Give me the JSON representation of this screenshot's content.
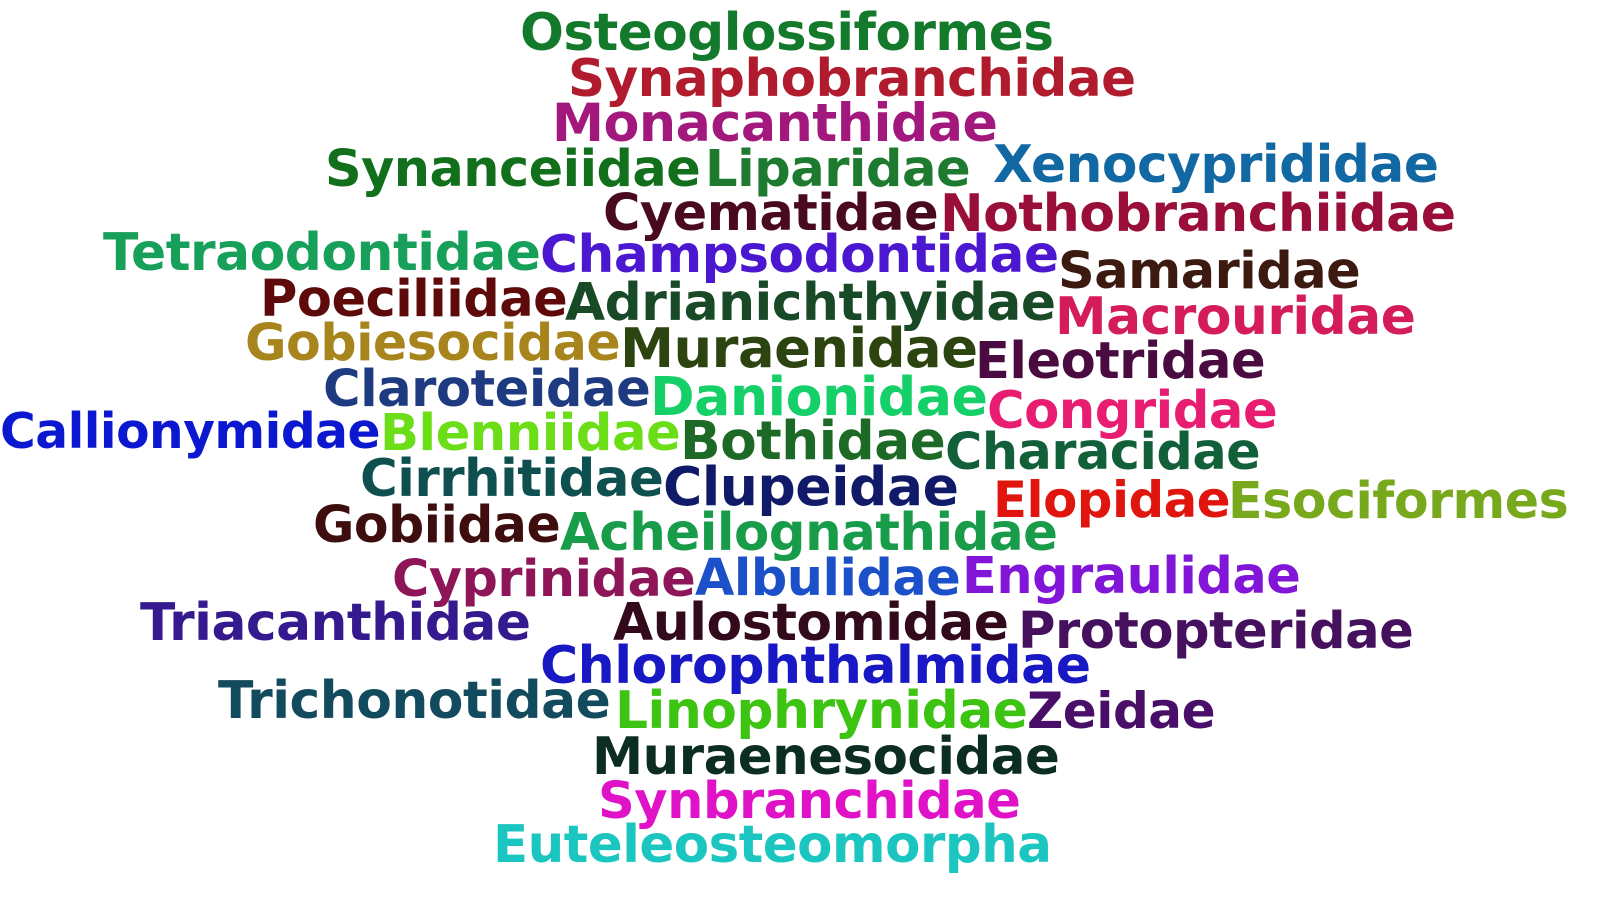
{
  "words": [
    {
      "text": "Osteoglossiformes",
      "color": "#137a2c"
    },
    {
      "text": "Synaphobranchidae",
      "color": "#b01c2e"
    },
    {
      "text": "Monacanthidae",
      "color": "#a3187d"
    },
    {
      "text": "Synanceiidae",
      "color": "#12701d"
    },
    {
      "text": "Liparidae",
      "color": "#1e7a2e"
    },
    {
      "text": "Xenocyprididae",
      "color": "#1268a3"
    },
    {
      "text": "Cyematidae",
      "color": "#4a0a1e"
    },
    {
      "text": "Nothobranchiidae",
      "color": "#9a0e3a"
    },
    {
      "text": "Tetraodontidae",
      "color": "#17a05a"
    },
    {
      "text": "Champsodontidae",
      "color": "#4b17d0"
    },
    {
      "text": "Samaridae",
      "color": "#3d1a10"
    },
    {
      "text": "Poeciliidae",
      "color": "#5e0a0a"
    },
    {
      "text": "Adrianichthyidae",
      "color": "#184a28"
    },
    {
      "text": "Macrouridae",
      "color": "#d41c5c"
    },
    {
      "text": "Gobiesocidae",
      "color": "#a8841c"
    },
    {
      "text": "Muraenidae",
      "color": "#2b4410"
    },
    {
      "text": "Eleotridae",
      "color": "#4a0c40"
    },
    {
      "text": "Claroteidae",
      "color": "#1e3b82"
    },
    {
      "text": "Danionidae",
      "color": "#15d068"
    },
    {
      "text": "Congridae",
      "color": "#e81d72"
    },
    {
      "text": "Callionymidae",
      "color": "#0c18cf"
    },
    {
      "text": "Blenniidae",
      "color": "#6bde17"
    },
    {
      "text": "Bothidae",
      "color": "#1d6a26"
    },
    {
      "text": "Characidae",
      "color": "#12603a"
    },
    {
      "text": "Cirrhitidae",
      "color": "#0e5050"
    },
    {
      "text": "Clupeidae",
      "color": "#101a68"
    },
    {
      "text": "Elopidae",
      "color": "#e0150e"
    },
    {
      "text": "Esociformes",
      "color": "#78a81c"
    },
    {
      "text": "Gobiidae",
      "color": "#3e0e0e"
    },
    {
      "text": "Acheilognathidae",
      "color": "#189c4a"
    },
    {
      "text": "Cyprinidae",
      "color": "#8e1658"
    },
    {
      "text": "Albulidae",
      "color": "#1c50c8"
    },
    {
      "text": "Engraulidae",
      "color": "#8116d8"
    },
    {
      "text": "Triacanthidae",
      "color": "#35198e"
    },
    {
      "text": "Aulostomidae",
      "color": "#330a1c"
    },
    {
      "text": "Protopteridae",
      "color": "#45105e"
    },
    {
      "text": "Chlorophthalmidae",
      "color": "#1818c4"
    },
    {
      "text": "Trichonotidae",
      "color": "#124a5e"
    },
    {
      "text": "Linophrynidae",
      "color": "#3dc412"
    },
    {
      "text": "Zeidae",
      "color": "#480e68"
    },
    {
      "text": "Muraenesocidae",
      "color": "#0c2d22"
    },
    {
      "text": "Synbranchidae",
      "color": "#e012c8"
    },
    {
      "text": "Euteleosteomorpha",
      "color": "#1bc6c0"
    }
  ]
}
